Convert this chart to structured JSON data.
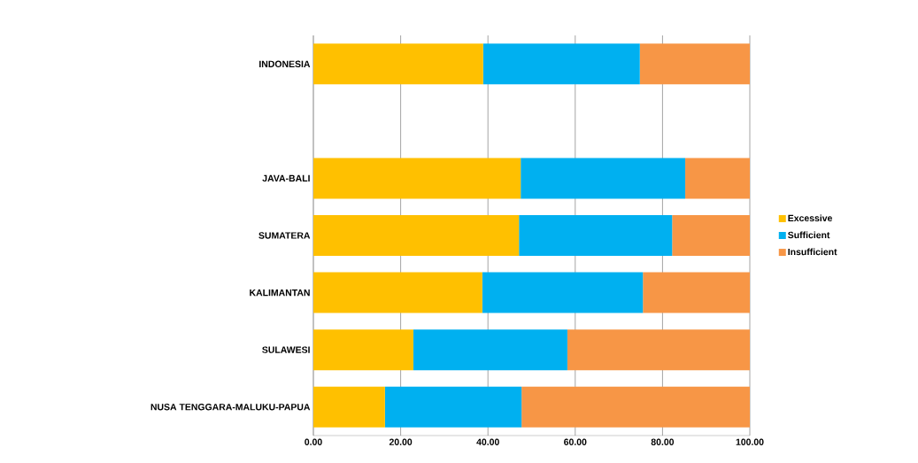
{
  "chart_data": {
    "type": "bar",
    "orientation": "horizontal",
    "stacked": true,
    "categories": [
      "INDONESIA",
      null,
      "JAVA-BALI",
      "SUMATERA",
      "KALIMANTAN",
      "SULAWESI",
      "NUSA TENGGARA-MALUKU-PAPUA"
    ],
    "series": [
      {
        "name": "Excessive",
        "color": "#ffc000",
        "values": [
          38.9,
          null,
          47.5,
          47.1,
          38.7,
          22.9,
          16.4
        ]
      },
      {
        "name": "Sufficient",
        "color": "#00b0f0",
        "values": [
          35.9,
          null,
          37.7,
          35.1,
          36.8,
          35.3,
          31.3
        ]
      },
      {
        "name": "Insufficient",
        "color": "#f79646",
        "values": [
          25.2,
          null,
          14.8,
          17.8,
          24.5,
          41.8,
          52.3
        ]
      }
    ],
    "xlim": [
      0,
      100
    ],
    "xticks": [
      {
        "value": 0,
        "label": "0.00"
      },
      {
        "value": 20,
        "label": "20.00"
      },
      {
        "value": 40,
        "label": "40.00"
      },
      {
        "value": 60,
        "label": "60.00"
      },
      {
        "value": 80,
        "label": "80.00"
      },
      {
        "value": 100,
        "label": "100.00"
      }
    ],
    "grid": "x",
    "legend": "right"
  }
}
